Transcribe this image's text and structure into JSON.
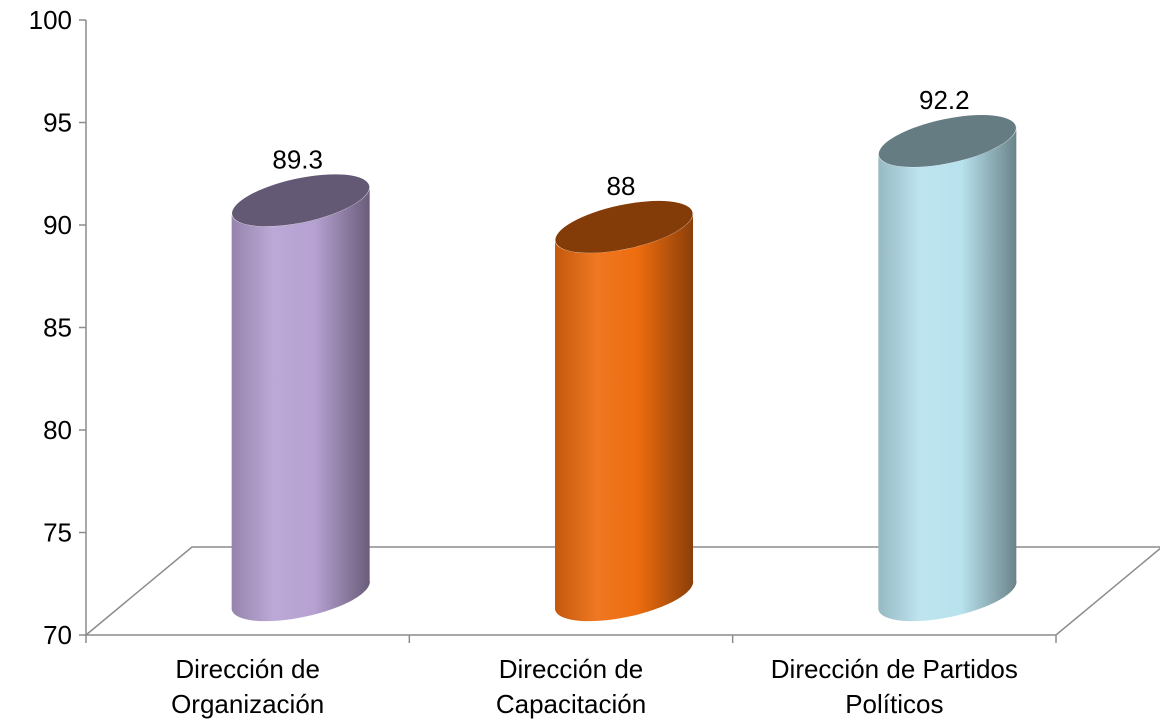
{
  "chart_data": {
    "type": "bar",
    "style": "3d-cylinder",
    "categories": [
      [
        "Dirección de",
        "Organización"
      ],
      [
        "Dirección de",
        "Capacitación"
      ],
      [
        "Dirección de Partidos",
        "Políticos"
      ]
    ],
    "values": [
      89.3,
      88,
      92.2
    ],
    "value_labels": [
      "89.3",
      "88",
      "92.2"
    ],
    "colors": [
      "#b6a1d2",
      "#ee6c0f",
      "#b8e2ee"
    ],
    "ylim": [
      70,
      100
    ],
    "yticks": [
      70,
      75,
      80,
      85,
      90,
      95,
      100
    ],
    "grid": false,
    "legend": "none",
    "title": "",
    "xlabel": "",
    "ylabel": ""
  }
}
